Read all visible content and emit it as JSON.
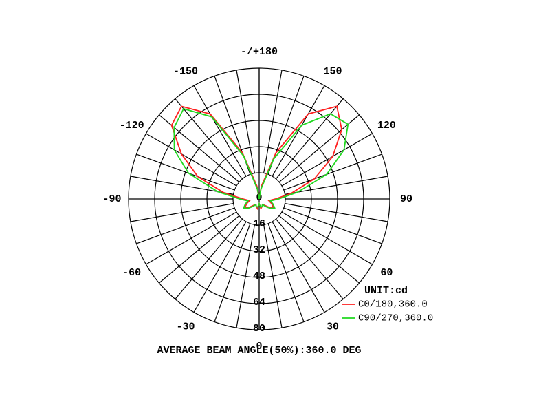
{
  "chart_data": {
    "type": "polar",
    "unit_label": "UNIT:cd",
    "footer": "AVERAGE BEAM ANGLE(50%):360.0 DEG",
    "x": [
      -180,
      -170,
      -160,
      -150,
      -140,
      -130,
      -120,
      -110,
      -100,
      -90,
      -80,
      -70,
      -60,
      -50,
      -40,
      -30,
      -20,
      -10,
      0,
      10,
      20,
      30,
      40,
      50,
      60,
      70,
      80,
      90,
      100,
      110,
      120,
      130,
      140,
      150,
      160,
      170,
      180
    ],
    "series": [
      {
        "name": "C0/180,360.0",
        "color": "#ff2020",
        "values": [
          0,
          8,
          30,
          60,
          74,
          70,
          55,
          40,
          22,
          10,
          6,
          8,
          10,
          8,
          5,
          4,
          5,
          6,
          3,
          6,
          5,
          4,
          5,
          8,
          10,
          8,
          6,
          10,
          20,
          36,
          52,
          66,
          74,
          60,
          30,
          8,
          0
        ]
      },
      {
        "name": "C90/270,360.0",
        "color": "#20d820",
        "values": [
          0,
          6,
          28,
          58,
          72,
          68,
          60,
          46,
          26,
          12,
          7,
          9,
          11,
          9,
          6,
          4,
          5,
          5,
          3,
          5,
          5,
          4,
          6,
          9,
          11,
          9,
          7,
          12,
          24,
          44,
          60,
          71,
          68,
          52,
          26,
          6,
          0
        ]
      }
    ],
    "xticks": [
      -150,
      -120,
      -90,
      -60,
      -30,
      0,
      30,
      60,
      90,
      120,
      150,
      {
        "value": 180,
        "label": "-/+180"
      }
    ],
    "rlim": [
      0,
      80
    ],
    "rticks": [
      0,
      16,
      32,
      48,
      64,
      80
    ],
    "theta_grid_step": 10
  }
}
